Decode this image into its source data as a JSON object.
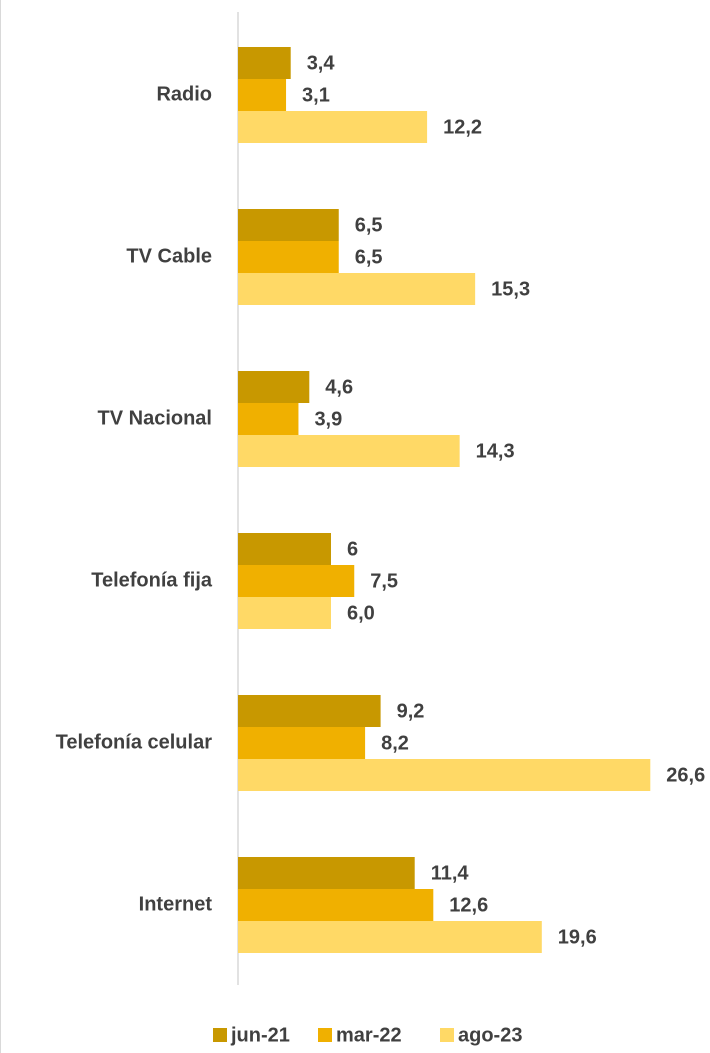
{
  "chart_data": {
    "type": "bar",
    "orientation": "horizontal",
    "categories": [
      "Radio",
      "TV Cable",
      "TV Nacional",
      "Telefonía fija",
      "Telefonía celular",
      "Internet"
    ],
    "series": [
      {
        "name": "jun-21",
        "color": "#c89800",
        "values": [
          3.4,
          6.5,
          4.6,
          6,
          9.2,
          11.4
        ],
        "value_labels": [
          "3,4",
          "6,5",
          "4,6",
          "6",
          "9,2",
          "11,4"
        ]
      },
      {
        "name": "mar-22",
        "color": "#f0b000",
        "values": [
          3.1,
          6.5,
          3.9,
          7.5,
          8.2,
          12.6
        ],
        "value_labels": [
          "3,1",
          "6,5",
          "3,9",
          "7,5",
          "8,2",
          "12,6"
        ]
      },
      {
        "name": "ago-23",
        "color": "#ffd966",
        "values": [
          12.2,
          15.3,
          14.3,
          6.0,
          26.6,
          19.6
        ],
        "value_labels": [
          "12,2",
          "15,3",
          "14,3",
          "6,0",
          "26,6",
          "19,6"
        ]
      }
    ],
    "xlim": [
      0,
      28
    ],
    "legend": "bottom"
  }
}
